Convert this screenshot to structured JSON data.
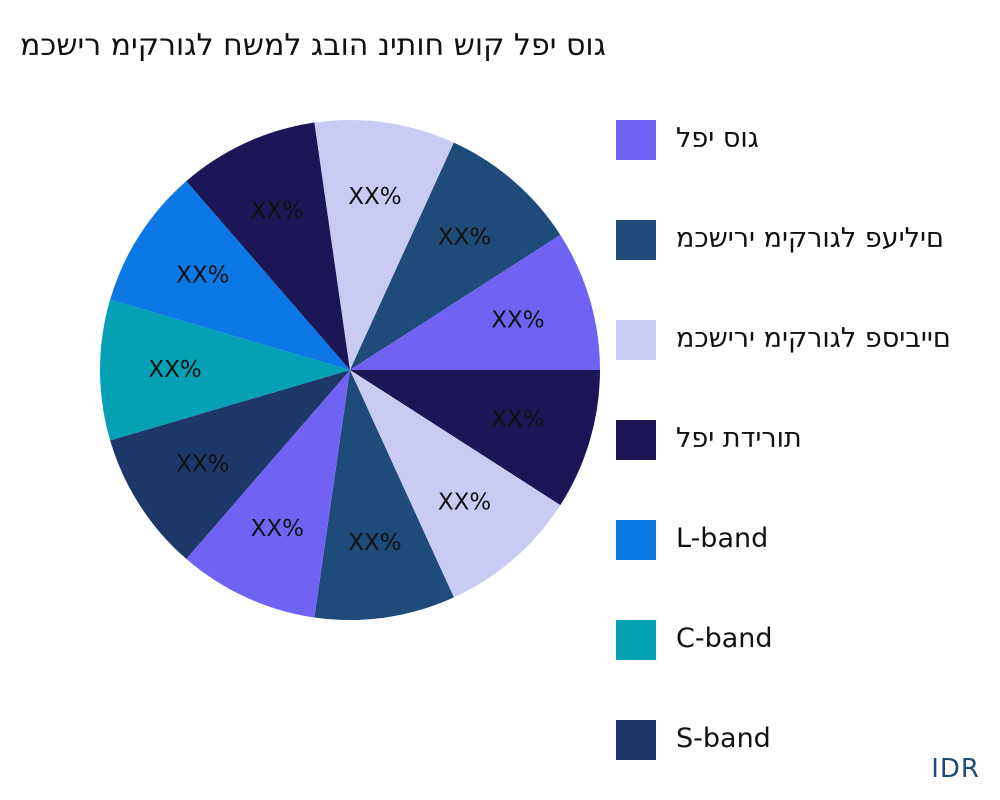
{
  "chart_data": {
    "type": "pie",
    "title": "גוס יפל קוש חותינ הובג למשח לגורקימ רישכמ",
    "slices": [
      {
        "label": "XX%",
        "value": 10,
        "color": "#1c1657"
      },
      {
        "label": "XX%",
        "value": 10,
        "color": "#cacbf2"
      },
      {
        "label": "XX%",
        "value": 10,
        "color": "#1f4b7a"
      },
      {
        "label": "XX%",
        "value": 10,
        "color": "#7062f3"
      },
      {
        "label": "XX%",
        "value": 10,
        "color": "#1c3768"
      },
      {
        "label": "XX%",
        "value": 10,
        "color": "#03a0b6"
      },
      {
        "label": "XX%",
        "value": 10,
        "color": "#0c78e5"
      },
      {
        "label": "XX%",
        "value": 10,
        "color": "#1c1657"
      },
      {
        "label": "XX%",
        "value": 10,
        "color": "#cacbf2"
      },
      {
        "label": "XX%",
        "value": 10,
        "color": "#1f4b7a"
      },
      {
        "label": "XX%",
        "value": 10,
        "color": "#7062f3"
      }
    ],
    "legend": [
      {
        "label": "גוס יפל",
        "color": "#7062f3"
      },
      {
        "label": "םיליעפ לגורקימ ירישכמ",
        "color": "#1f4b7a"
      },
      {
        "label": "םייביספ לגורקימ ירישכמ",
        "color": "#cacbf2"
      },
      {
        "label": "תורידת יפל",
        "color": "#1c1657"
      },
      {
        "label": "L-band",
        "color": "#0c78e5"
      },
      {
        "label": "C-band",
        "color": "#03a0b6"
      },
      {
        "label": "S-band",
        "color": "#1c3768"
      }
    ],
    "legend_position": "right"
  },
  "footer": {
    "source": "IDR"
  }
}
